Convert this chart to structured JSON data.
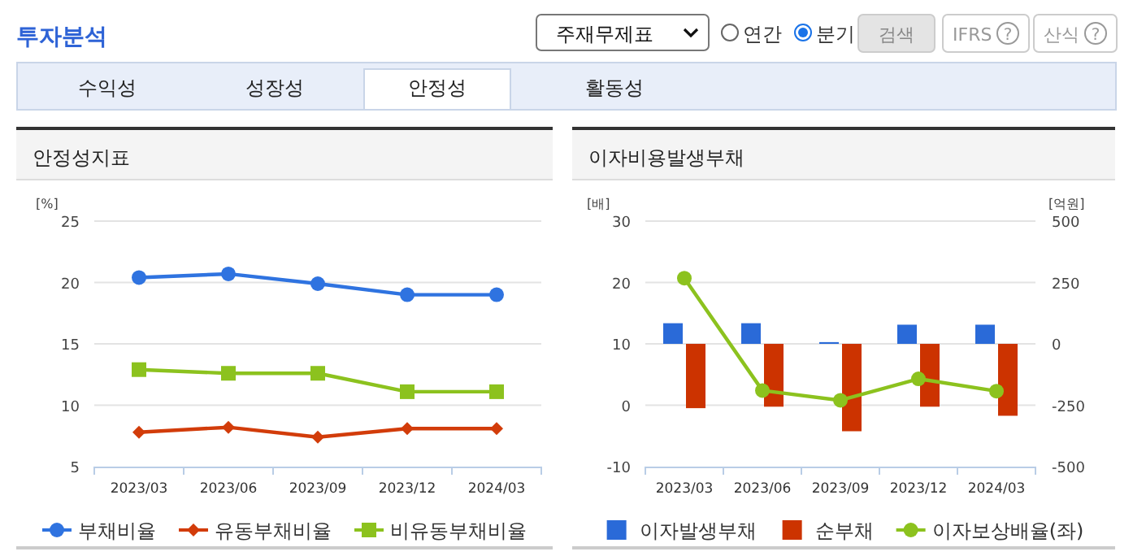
{
  "chart_data": [
    {
      "type": "other",
      "title": "투자분석",
      "annotations": [
        "주재무제표",
        "연간",
        "분기",
        "검색",
        "IFRS",
        "산식",
        "수익성",
        "성장성",
        "안정성",
        "활동성",
        "?",
        "?"
      ]
    },
    {
      "type": "line",
      "title": "안정성지표",
      "ylabel": "[%]",
      "categories": [
        "2023/03",
        "2023/06",
        "2023/09",
        "2023/12",
        "2024/03"
      ],
      "ylim": [
        5,
        25
      ],
      "yticks": [
        5,
        10,
        15,
        20,
        25
      ],
      "grid": "y",
      "legend": "bottom",
      "series": [
        {
          "name": "부채비율",
          "color": "#2f73e0",
          "marker": "circle",
          "values": [
            20.4,
            20.7,
            19.9,
            19.0,
            19.0
          ]
        },
        {
          "name": "유동부채비율",
          "color": "#d23c0a",
          "marker": "diamond",
          "values": [
            7.8,
            8.2,
            7.4,
            8.1,
            8.1
          ]
        },
        {
          "name": "비유동부채비율",
          "color": "#8cc21e",
          "marker": "square",
          "values": [
            12.9,
            12.6,
            12.6,
            11.1,
            11.1
          ]
        }
      ]
    },
    {
      "type": "bar",
      "title": "이자비용발생부채",
      "ylabel": "[배]",
      "y2label": "[억원]",
      "categories": [
        "2023/03",
        "2023/06",
        "2023/09",
        "2023/12",
        "2024/03"
      ],
      "ylim": [
        -10,
        30
      ],
      "yticks": [
        -10,
        0,
        10,
        20,
        30
      ],
      "y2lim": [
        -500,
        500
      ],
      "y2ticks": [
        -500,
        -250,
        0,
        250,
        500
      ],
      "grid": "y",
      "legend": "bottom",
      "series": [
        {
          "name": "이자발생부채",
          "color": "#2a6ad8",
          "axis": "y2",
          "values": [
            84,
            84,
            7,
            78,
            78
          ]
        },
        {
          "name": "순부채",
          "color": "#cc3300",
          "axis": "y2",
          "values": [
            -262,
            -256,
            -356,
            -256,
            -293
          ]
        },
        {
          "name": "이자보상배율(좌)",
          "type": "line",
          "color": "#8cc21e",
          "marker": "circle",
          "axis": "y",
          "values": [
            20.7,
            2.4,
            0.8,
            4.3,
            2.3
          ]
        }
      ]
    }
  ]
}
